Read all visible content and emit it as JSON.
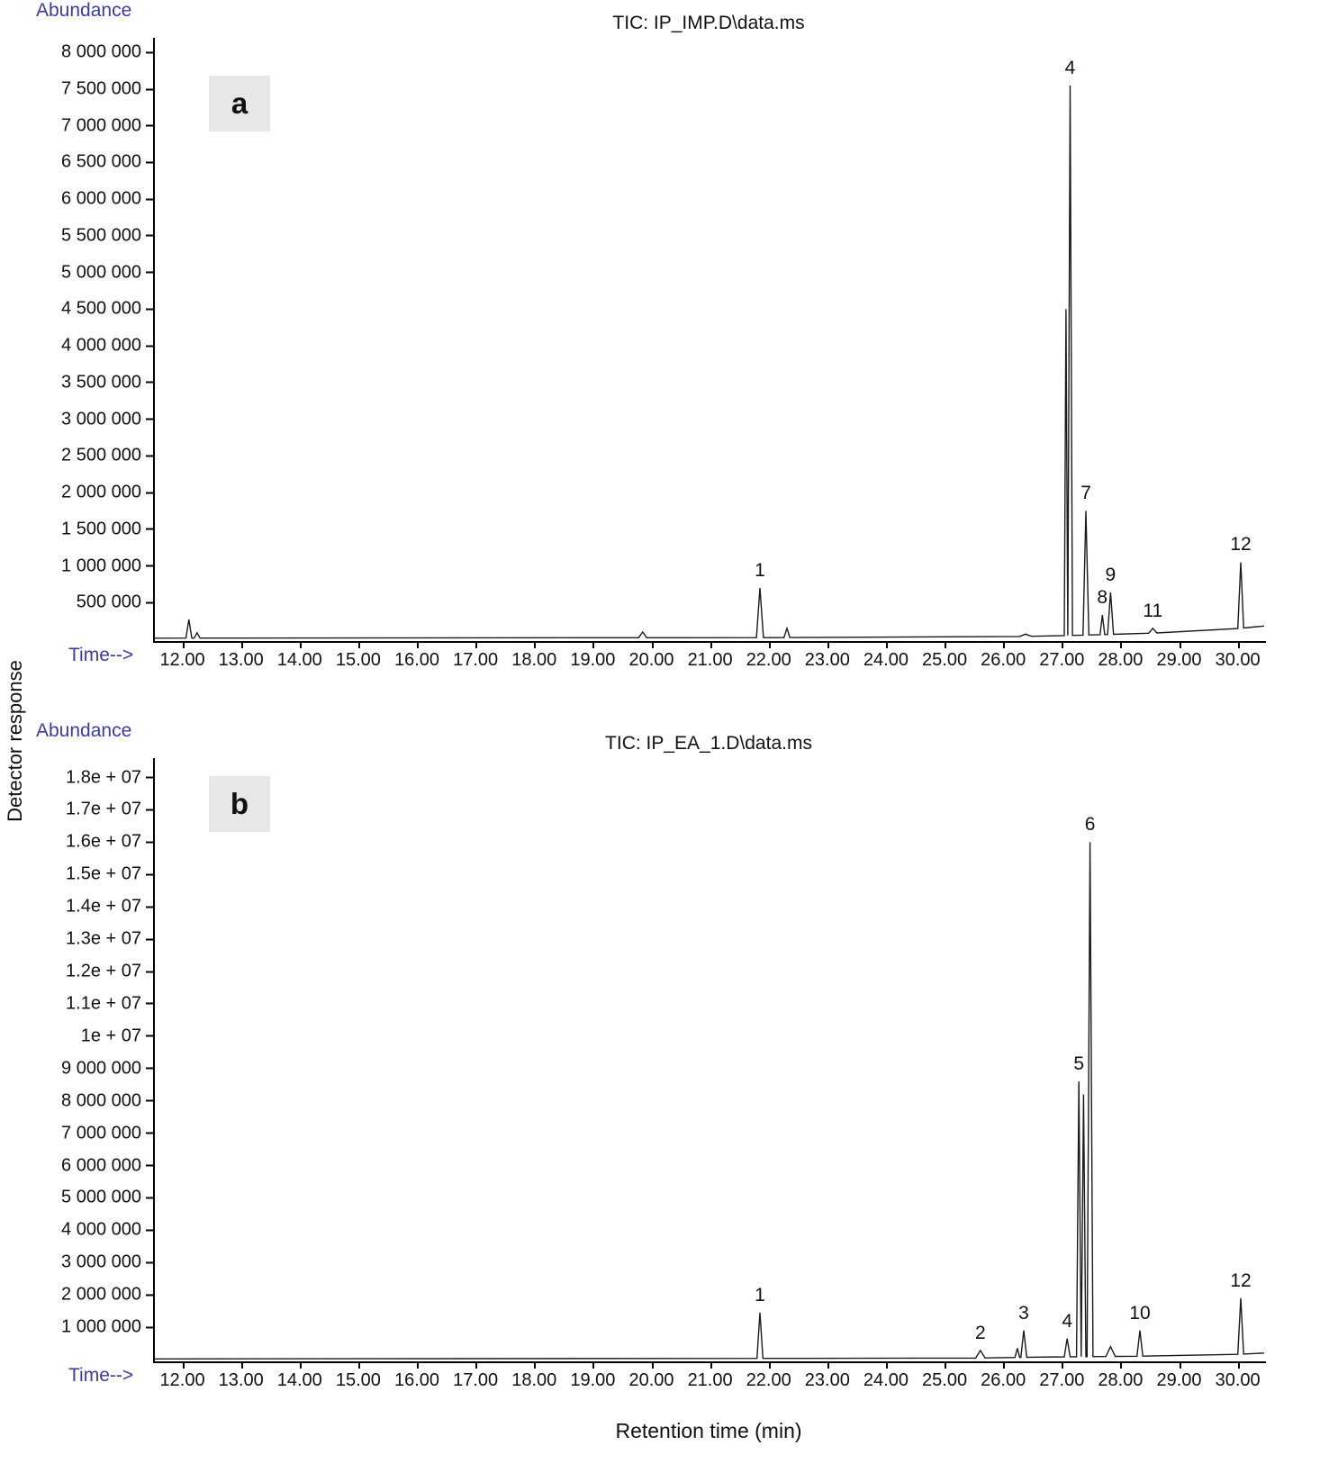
{
  "page": {
    "y_axis_global": "Detector response",
    "x_axis_global": "Retention time (min)"
  },
  "colors": {
    "accent_blue": "#3a3aa8",
    "trace": "#1a1a1a",
    "panel_tag_bg": "#e7e7e7"
  },
  "chart_data": [
    {
      "type": "line",
      "panel_label": "a",
      "title": "TIC: IP_IMP.D\\data.ms",
      "abundance_label": "Abundance",
      "time_label": "Time-->",
      "xlabel": "Retention time (min)",
      "ylabel": "Abundance",
      "xlim": [
        11.5,
        30.42
      ],
      "ylim": [
        0,
        8200000
      ],
      "grid": false,
      "legend": "none",
      "xticks": [
        "12.00",
        "13.00",
        "14.00",
        "15.00",
        "16.00",
        "17.00",
        "18.00",
        "19.00",
        "20.00",
        "21.00",
        "22.00",
        "23.00",
        "24.00",
        "25.00",
        "26.00",
        "27.00",
        "28.00",
        "29.00",
        "30.00"
      ],
      "yticks": [
        {
          "v": 500000,
          "label": "500 000"
        },
        {
          "v": 1000000,
          "label": "1 000 000"
        },
        {
          "v": 1500000,
          "label": "1 500 000"
        },
        {
          "v": 2000000,
          "label": "2 000 000"
        },
        {
          "v": 2500000,
          "label": "2 500 000"
        },
        {
          "v": 3000000,
          "label": "3 000 000"
        },
        {
          "v": 3500000,
          "label": "3 500 000"
        },
        {
          "v": 4000000,
          "label": "4 000 000"
        },
        {
          "v": 4500000,
          "label": "4 500 000"
        },
        {
          "v": 5000000,
          "label": "5 000 000"
        },
        {
          "v": 5500000,
          "label": "5 500 000"
        },
        {
          "v": 6000000,
          "label": "6 000 000"
        },
        {
          "v": 6500000,
          "label": "6 500 000"
        },
        {
          "v": 7000000,
          "label": "7 000 000"
        },
        {
          "v": 7500000,
          "label": "7 500 000"
        },
        {
          "v": 8000000,
          "label": "8 000 000"
        }
      ],
      "peaks": [
        {
          "x": 12.08,
          "y": 270000,
          "w": 0.05
        },
        {
          "x": 12.22,
          "y": 90000,
          "w": 0.05
        },
        {
          "x": 19.82,
          "y": 100000,
          "w": 0.07
        },
        {
          "x": 21.82,
          "y": 700000,
          "w": 0.06,
          "label": "1"
        },
        {
          "x": 22.28,
          "y": 150000,
          "w": 0.05
        },
        {
          "x": 26.35,
          "y": 70000,
          "w": 0.1
        },
        {
          "x": 27.04,
          "y": 4500000,
          "w": 0.03
        },
        {
          "x": 27.11,
          "y": 7550000,
          "w": 0.04,
          "label": "4"
        },
        {
          "x": 27.38,
          "y": 1750000,
          "w": 0.05,
          "label": "7"
        },
        {
          "x": 27.66,
          "y": 330000,
          "w": 0.04,
          "label": "8"
        },
        {
          "x": 27.8,
          "y": 640000,
          "w": 0.05,
          "label": "9"
        },
        {
          "x": 28.52,
          "y": 150000,
          "w": 0.07,
          "label": "11"
        },
        {
          "x": 30.02,
          "y": 1050000,
          "w": 0.05,
          "label": "12"
        }
      ],
      "baseline": [
        {
          "x": 11.5,
          "y": 15000
        },
        {
          "x": 25.5,
          "y": 25000
        },
        {
          "x": 27.0,
          "y": 50000
        },
        {
          "x": 28.0,
          "y": 70000
        },
        {
          "x": 29.5,
          "y": 110000
        },
        {
          "x": 30.42,
          "y": 180000
        }
      ]
    },
    {
      "type": "line",
      "panel_label": "b",
      "title": "TIC: IP_EA_1.D\\data.ms",
      "abundance_label": "Abundance",
      "time_label": "Time-->",
      "xlabel": "Retention time (min)",
      "ylabel": "Abundance",
      "xlim": [
        11.5,
        30.42
      ],
      "ylim": [
        0,
        18600000
      ],
      "grid": false,
      "legend": "none",
      "xticks": [
        "12.00",
        "13.00",
        "14.00",
        "15.00",
        "16.00",
        "17.00",
        "18.00",
        "19.00",
        "20.00",
        "21.00",
        "22.00",
        "23.00",
        "24.00",
        "25.00",
        "26.00",
        "27.00",
        "28.00",
        "29.00",
        "30.00"
      ],
      "yticks": [
        {
          "v": 1000000,
          "label": "1 000 000"
        },
        {
          "v": 2000000,
          "label": "2 000 000"
        },
        {
          "v": 3000000,
          "label": "3 000 000"
        },
        {
          "v": 4000000,
          "label": "4 000 000"
        },
        {
          "v": 5000000,
          "label": "5 000 000"
        },
        {
          "v": 6000000,
          "label": "6 000 000"
        },
        {
          "v": 7000000,
          "label": "7 000 000"
        },
        {
          "v": 8000000,
          "label": "8 000 000"
        },
        {
          "v": 9000000,
          "label": "9 000 000"
        },
        {
          "v": 10000000,
          "label": "1e + 07"
        },
        {
          "v": 11000000,
          "label": "1.1e + 07"
        },
        {
          "v": 12000000,
          "label": "1.2e + 07"
        },
        {
          "v": 13000000,
          "label": "1.3e + 07"
        },
        {
          "v": 14000000,
          "label": "1.4e + 07"
        },
        {
          "v": 15000000,
          "label": "1.5e + 07"
        },
        {
          "v": 16000000,
          "label": "1.6e + 07"
        },
        {
          "v": 17000000,
          "label": "1.7e + 07"
        },
        {
          "v": 18000000,
          "label": "1.8e + 07"
        }
      ],
      "peaks": [
        {
          "x": 21.82,
          "y": 1450000,
          "w": 0.05,
          "label": "1"
        },
        {
          "x": 25.58,
          "y": 280000,
          "w": 0.08,
          "label": "2"
        },
        {
          "x": 26.21,
          "y": 350000,
          "w": 0.04
        },
        {
          "x": 26.32,
          "y": 900000,
          "w": 0.05,
          "label": "3"
        },
        {
          "x": 27.06,
          "y": 650000,
          "w": 0.05,
          "label": "4"
        },
        {
          "x": 27.26,
          "y": 8600000,
          "w": 0.04,
          "label": "5"
        },
        {
          "x": 27.34,
          "y": 8200000,
          "w": 0.04
        },
        {
          "x": 27.45,
          "y": 16000000,
          "w": 0.05,
          "label": "6"
        },
        {
          "x": 27.8,
          "y": 400000,
          "w": 0.08
        },
        {
          "x": 28.3,
          "y": 900000,
          "w": 0.05,
          "label": "10"
        },
        {
          "x": 30.02,
          "y": 1900000,
          "w": 0.05,
          "label": "12"
        }
      ],
      "baseline": [
        {
          "x": 11.5,
          "y": 20000
        },
        {
          "x": 25.3,
          "y": 40000
        },
        {
          "x": 26.8,
          "y": 80000
        },
        {
          "x": 28.0,
          "y": 100000
        },
        {
          "x": 29.5,
          "y": 120000
        },
        {
          "x": 30.42,
          "y": 200000
        }
      ]
    }
  ]
}
